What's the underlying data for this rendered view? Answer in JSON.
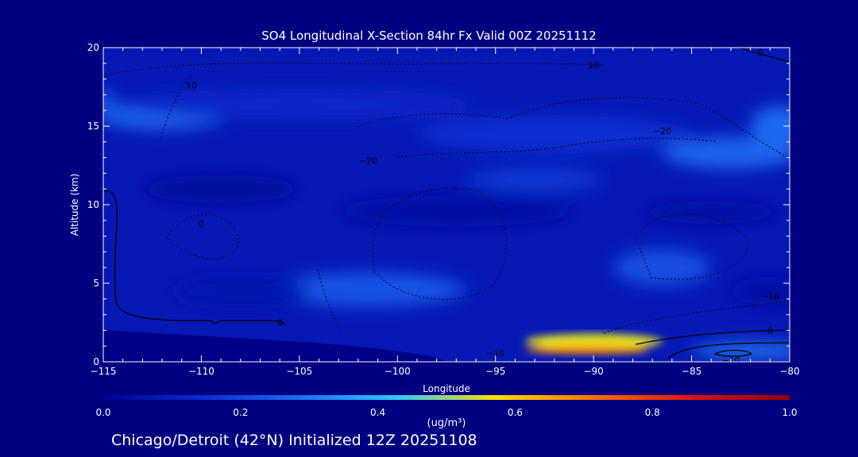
{
  "chart_data": {
    "type": "heatmap",
    "title": "SO4 Longitudinal X-Section 84hr  Fx Valid 00Z 20251112",
    "xlabel": "Longitude",
    "ylabel": "Altitude (km)",
    "xlim": [
      -115,
      -80
    ],
    "ylim": [
      0,
      20
    ],
    "x_ticks": [
      -115,
      -110,
      -105,
      -100,
      -95,
      -90,
      -85,
      -80
    ],
    "x_tick_labels": [
      "−115",
      "−110",
      "−105",
      "−100",
      "−95",
      "−90",
      "−85",
      "−80"
    ],
    "y_ticks": [
      0,
      5,
      10,
      15,
      20
    ],
    "y_tick_labels": [
      "0",
      "5",
      "10",
      "15",
      "20"
    ],
    "colorbar": {
      "min": 0.0,
      "max": 1.0,
      "ticks": [
        0.0,
        0.2,
        0.4,
        0.6,
        0.8,
        1.0
      ],
      "tick_labels": [
        "0.0",
        "0.2",
        "0.4",
        "0.6",
        "0.8",
        "1.0"
      ],
      "unit_label": "(ug/m³)",
      "colors": [
        "#000090",
        "#0a2ad0",
        "#1e6cf0",
        "#30c8f8",
        "#ffe000",
        "#ff7000",
        "#e01010",
        "#900000"
      ]
    },
    "background_value": 0.08,
    "features": [
      {
        "lon": -112,
        "alt": 15.6,
        "rx": 3.2,
        "ry": 0.8,
        "value": 0.27
      },
      {
        "lon": -115.5,
        "alt": 16.6,
        "rx": 1.2,
        "ry": 0.8,
        "value": 0.22
      },
      {
        "lon": -83,
        "alt": 13.3,
        "rx": 3.5,
        "ry": 1.0,
        "value": 0.27
      },
      {
        "lon": -80.5,
        "alt": 15.0,
        "rx": 1.5,
        "ry": 1.3,
        "value": 0.28
      },
      {
        "lon": -92,
        "alt": 14.5,
        "rx": 7,
        "ry": 1.2,
        "value": 0.15
      },
      {
        "lon": -105,
        "alt": 16.4,
        "rx": 9,
        "ry": 1.0,
        "value": 0.13
      },
      {
        "lon": -97,
        "alt": 9.6,
        "rx": 6,
        "ry": 1.0,
        "value": 0.04
      },
      {
        "lon": -109,
        "alt": 11.0,
        "rx": 4,
        "ry": 0.9,
        "value": 0.03
      },
      {
        "lon": -84,
        "alt": 9.5,
        "rx": 3.5,
        "ry": 0.7,
        "value": 0.04
      },
      {
        "lon": -93,
        "alt": 11.6,
        "rx": 3.5,
        "ry": 0.8,
        "value": 0.17
      },
      {
        "lon": -101.5,
        "alt": 4.6,
        "rx": 5,
        "ry": 1.1,
        "value": 0.23
      },
      {
        "lon": -108,
        "alt": 4.5,
        "rx": 3.5,
        "ry": 0.9,
        "value": 0.06
      },
      {
        "lon": -86.5,
        "alt": 6.0,
        "rx": 2.5,
        "ry": 1.2,
        "value": 0.22
      },
      {
        "lon": -81,
        "alt": 4.5,
        "rx": 2,
        "ry": 0.9,
        "value": 0.05
      },
      {
        "lon": -90,
        "alt": 1.3,
        "rx": 3.5,
        "ry": 0.5,
        "value": 0.55
      },
      {
        "lon": -90.3,
        "alt": 0.75,
        "rx": 3.2,
        "ry": 0.25,
        "value": 0.68
      },
      {
        "lon": -82,
        "alt": 0.7,
        "rx": 3,
        "ry": 0.5,
        "value": 0.3
      }
    ],
    "contour_labels": [
      {
        "text": "10",
        "lon": -110.5,
        "alt": 17.6
      },
      {
        "text": "10",
        "lon": -90,
        "alt": 18.9
      },
      {
        "text": "0",
        "lon": -81.5,
        "alt": 19.7
      },
      {
        "text": "−20",
        "lon": -86.5,
        "alt": 14.7
      },
      {
        "text": "−20",
        "lon": -101.5,
        "alt": 12.8
      },
      {
        "text": "0",
        "lon": -110,
        "alt": 8.8
      },
      {
        "text": "−10",
        "lon": -95,
        "alt": 0.55
      },
      {
        "text": "0",
        "lon": -81,
        "alt": 2.0
      },
      {
        "text": "−10",
        "lon": -81,
        "alt": 4.2
      },
      {
        "text": "−10",
        "lon": -83,
        "alt": 0.1
      },
      {
        "text": "0",
        "lon": -106,
        "alt": 2.5
      }
    ]
  },
  "footer": "Chicago/Detroit (42°N) Initialized 12Z 20251108"
}
